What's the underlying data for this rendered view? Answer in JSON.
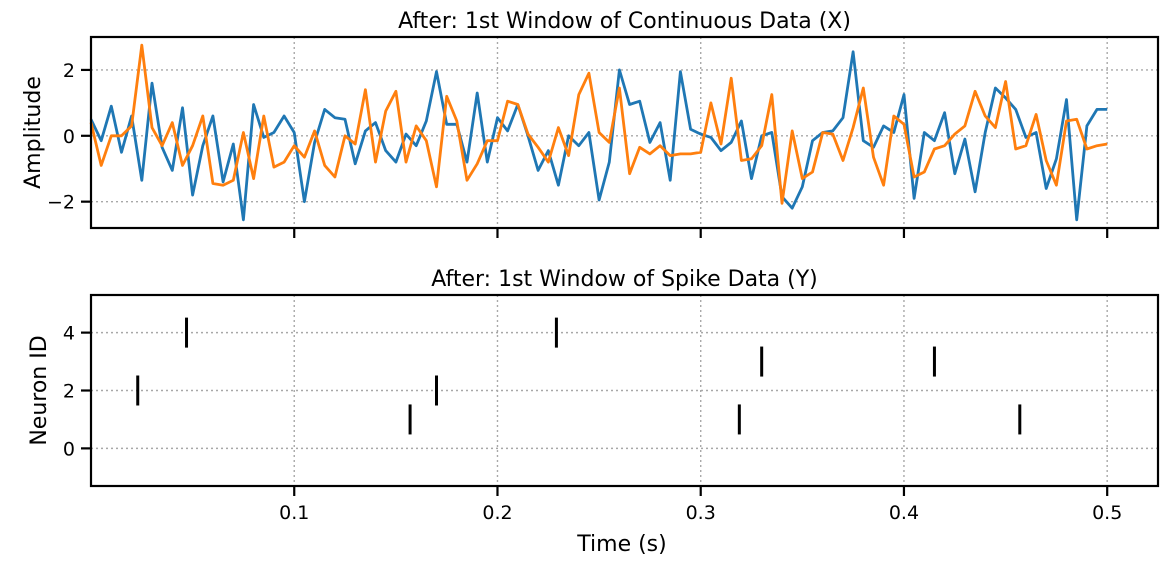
{
  "chart_data": [
    {
      "type": "line",
      "title": "After: 1st Window of Continuous Data (X)",
      "xlabel": "",
      "ylabel": "Amplitude",
      "xlim": [
        0.0,
        0.525
      ],
      "ylim": [
        -2.8,
        3.0
      ],
      "xticks": [
        0.1,
        0.2,
        0.3,
        0.4,
        0.5
      ],
      "show_xtick_labels": false,
      "yticks": [
        -2,
        0,
        2
      ],
      "ytick_labels": [
        "−2",
        "0",
        "2"
      ],
      "grid": true,
      "x": [
        0.0,
        0.005,
        0.01,
        0.015,
        0.02,
        0.025,
        0.03,
        0.035,
        0.04,
        0.045,
        0.05,
        0.055,
        0.06,
        0.065,
        0.07,
        0.075,
        0.08,
        0.085,
        0.09,
        0.095,
        0.1,
        0.105,
        0.11,
        0.115,
        0.12,
        0.125,
        0.13,
        0.135,
        0.14,
        0.145,
        0.15,
        0.155,
        0.16,
        0.165,
        0.17,
        0.175,
        0.18,
        0.185,
        0.19,
        0.195,
        0.2,
        0.205,
        0.21,
        0.215,
        0.22,
        0.225,
        0.23,
        0.235,
        0.24,
        0.245,
        0.25,
        0.255,
        0.26,
        0.265,
        0.27,
        0.275,
        0.28,
        0.285,
        0.29,
        0.295,
        0.3,
        0.305,
        0.31,
        0.315,
        0.32,
        0.325,
        0.33,
        0.335,
        0.34,
        0.345,
        0.35,
        0.355,
        0.36,
        0.365,
        0.37,
        0.375,
        0.38,
        0.385,
        0.39,
        0.395,
        0.4,
        0.405,
        0.41,
        0.415,
        0.42,
        0.425,
        0.43,
        0.435,
        0.44,
        0.445,
        0.45,
        0.455,
        0.46,
        0.465,
        0.47,
        0.475,
        0.48,
        0.485,
        0.49,
        0.495,
        0.5
      ],
      "series": [
        {
          "color": "#1f77b4",
          "values": [
            0.5,
            -0.15,
            0.9,
            -0.5,
            0.6,
            -1.35,
            1.6,
            -0.35,
            -1.05,
            0.85,
            -1.8,
            -0.3,
            0.6,
            -1.4,
            -0.25,
            -2.55,
            0.95,
            -0.05,
            0.1,
            0.6,
            0.1,
            -2.0,
            -0.2,
            0.8,
            0.55,
            0.5,
            -0.85,
            0.15,
            0.4,
            -0.45,
            -0.8,
            0.05,
            -0.3,
            0.45,
            1.95,
            0.35,
            0.35,
            -0.8,
            1.3,
            -0.8,
            0.55,
            0.15,
            0.95,
            0.0,
            -1.05,
            -0.45,
            -1.5,
            0.0,
            -0.3,
            0.1,
            -1.95,
            -0.8,
            2.0,
            0.95,
            1.05,
            -0.2,
            0.4,
            -1.35,
            1.95,
            0.2,
            0.05,
            -0.05,
            -0.45,
            -0.2,
            0.45,
            -1.3,
            0.0,
            0.1,
            -1.85,
            -2.2,
            -1.55,
            -0.15,
            0.1,
            0.15,
            0.55,
            2.55,
            -0.15,
            -0.35,
            0.3,
            0.1,
            1.25,
            -1.9,
            0.1,
            -0.15,
            0.7,
            -1.15,
            -0.1,
            -1.7,
            0.1,
            1.45,
            1.15,
            0.8,
            -0.05,
            0.1,
            -1.6,
            -0.7,
            1.1,
            -2.55,
            0.3,
            0.8,
            0.8
          ]
        },
        {
          "color": "#ff7f0e",
          "values": [
            0.4,
            -0.9,
            0.0,
            0.0,
            0.3,
            2.75,
            0.25,
            -0.3,
            0.4,
            -0.9,
            -0.3,
            0.6,
            -1.45,
            -1.5,
            -1.35,
            0.1,
            -1.3,
            0.6,
            -0.95,
            -0.8,
            -0.3,
            -0.65,
            0.15,
            -0.9,
            -1.25,
            0.0,
            -0.25,
            1.4,
            -0.8,
            0.75,
            1.35,
            -0.8,
            0.3,
            -0.15,
            -1.55,
            1.2,
            0.45,
            -1.35,
            -0.85,
            -0.15,
            -0.15,
            1.05,
            0.95,
            0.05,
            -0.35,
            -0.8,
            0.25,
            -0.6,
            1.25,
            1.9,
            0.1,
            -0.2,
            1.45,
            -1.15,
            -0.35,
            -0.55,
            -0.3,
            -0.6,
            -0.55,
            -0.55,
            -0.5,
            1.0,
            -0.25,
            1.75,
            -0.75,
            -0.7,
            -0.3,
            1.25,
            -2.05,
            0.15,
            -1.3,
            -1.1,
            0.1,
            0.05,
            -0.75,
            0.25,
            1.45,
            -0.65,
            -1.5,
            0.6,
            0.35,
            -1.25,
            -1.1,
            -0.4,
            -0.3,
            0.05,
            0.3,
            1.35,
            0.6,
            0.25,
            1.65,
            -0.4,
            -0.3,
            0.65,
            -0.75,
            -1.5,
            0.45,
            0.5,
            -0.4,
            -0.3,
            -0.25
          ]
        }
      ]
    },
    {
      "type": "scatter",
      "title": "After: 1st Window of Spike Data (Y)",
      "xlabel": "Time (s)",
      "ylabel": "Neuron ID",
      "xlim": [
        0.0,
        0.525
      ],
      "ylim": [
        -1.3,
        5.3
      ],
      "xticks": [
        0.1,
        0.2,
        0.3,
        0.4,
        0.5
      ],
      "xtick_labels": [
        "0.1",
        "0.2",
        "0.3",
        "0.4",
        "0.5"
      ],
      "yticks": [
        0,
        2,
        4
      ],
      "ytick_labels": [
        "0",
        "2",
        "4"
      ],
      "grid": true,
      "marker": "|",
      "color": "#000000",
      "points": [
        {
          "x": 0.023,
          "y": 2
        },
        {
          "x": 0.047,
          "y": 4
        },
        {
          "x": 0.157,
          "y": 1
        },
        {
          "x": 0.17,
          "y": 2
        },
        {
          "x": 0.229,
          "y": 4
        },
        {
          "x": 0.319,
          "y": 1
        },
        {
          "x": 0.33,
          "y": 3
        },
        {
          "x": 0.415,
          "y": 3
        },
        {
          "x": 0.457,
          "y": 1
        }
      ]
    }
  ]
}
